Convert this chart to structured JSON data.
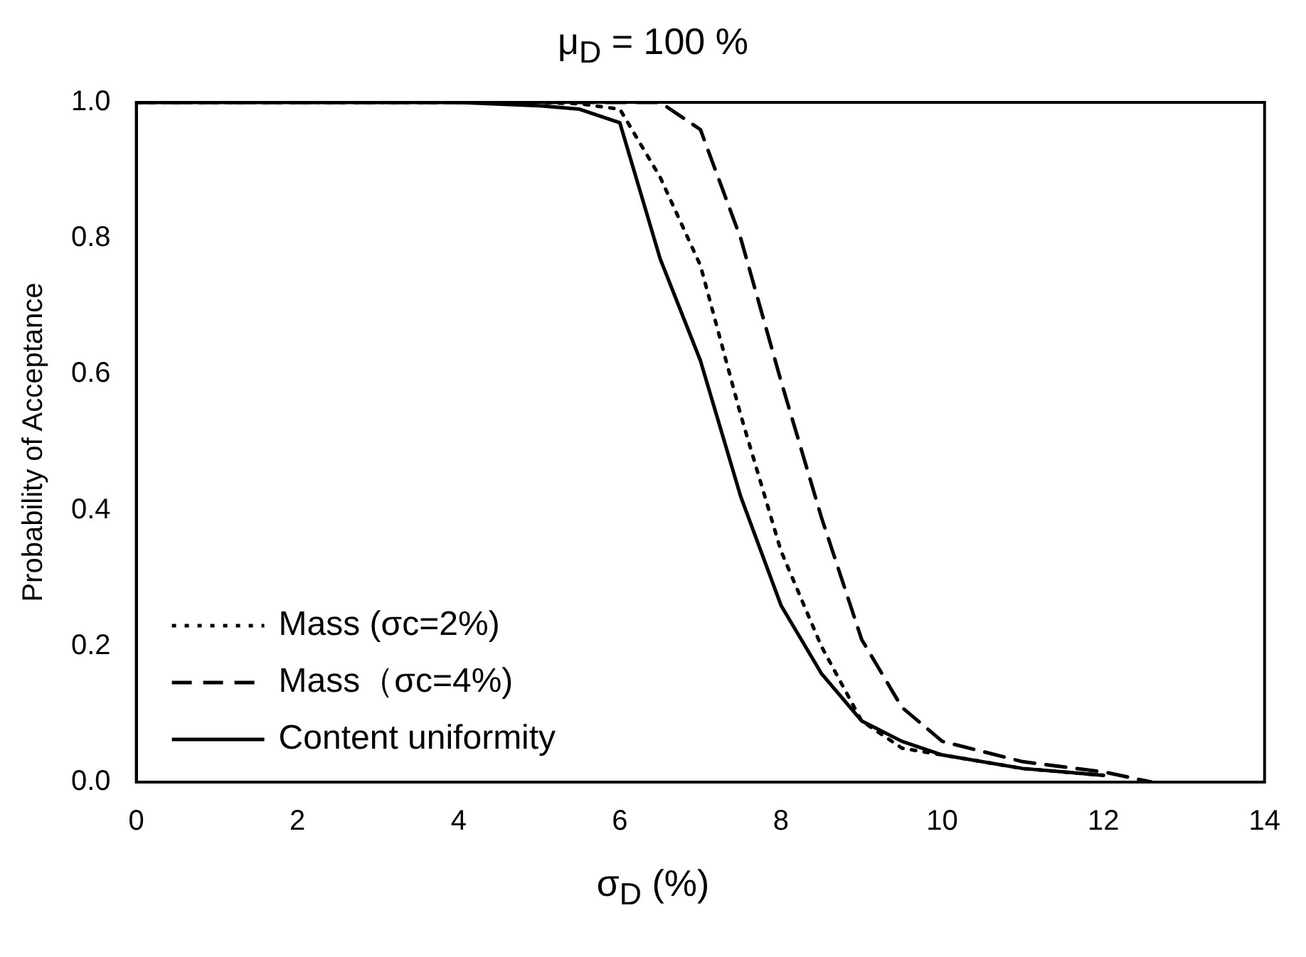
{
  "chart_data": {
    "type": "line",
    "title": "μ$_{D}$ = 100 %",
    "xlabel": "σ$_{D}$ (%)",
    "ylabel": "Probability of Acceptance",
    "xlim": [
      0,
      14
    ],
    "xticks": [
      0,
      2,
      4,
      6,
      8,
      10,
      12,
      14
    ],
    "ylim": [
      0,
      1
    ],
    "yticks": [
      {
        "value": 0,
        "label": "0.0"
      },
      {
        "value": 0.2,
        "label": "0.2"
      },
      {
        "value": 0.4,
        "label": "0.4"
      },
      {
        "value": 0.6,
        "label": "0.6"
      },
      {
        "value": 0.8,
        "label": "0.8"
      },
      {
        "value": 1,
        "label": "1.0"
      }
    ],
    "grid": false,
    "legend": "bottom left",
    "marker": "none",
    "series": [
      {
        "name": "Mass (σc=2%)",
        "color": "#000000",
        "line_style": "dotted",
        "x": [
          0,
          5,
          5.5,
          6,
          6.5,
          7,
          7.5,
          8,
          8.5,
          9,
          9.5,
          10,
          11,
          12
        ],
        "values": [
          1,
          1,
          0.998,
          0.99,
          0.89,
          0.76,
          0.54,
          0.34,
          0.2,
          0.09,
          0.05,
          0.04,
          0.02,
          0.01
        ]
      },
      {
        "name": "Mass（σc=4%)",
        "color": "#000000",
        "line_style": "dashed",
        "x": [
          0,
          6,
          6.5,
          7,
          7.5,
          8,
          8.5,
          9,
          9.5,
          10,
          11,
          12,
          12.6
        ],
        "values": [
          1,
          1,
          1,
          0.96,
          0.8,
          0.59,
          0.39,
          0.21,
          0.11,
          0.06,
          0.03,
          0.015,
          0
        ]
      },
      {
        "name": "Content uniformity",
        "color": "#000000",
        "line_style": "solid",
        "x": [
          0,
          4,
          5,
          5.5,
          6,
          6.5,
          7,
          7.5,
          8,
          8.5,
          9,
          9.5,
          10,
          11,
          12
        ],
        "values": [
          1,
          1,
          0.995,
          0.99,
          0.97,
          0.77,
          0.62,
          0.42,
          0.26,
          0.16,
          0.09,
          0.06,
          0.04,
          0.02,
          0.01
        ]
      }
    ]
  }
}
